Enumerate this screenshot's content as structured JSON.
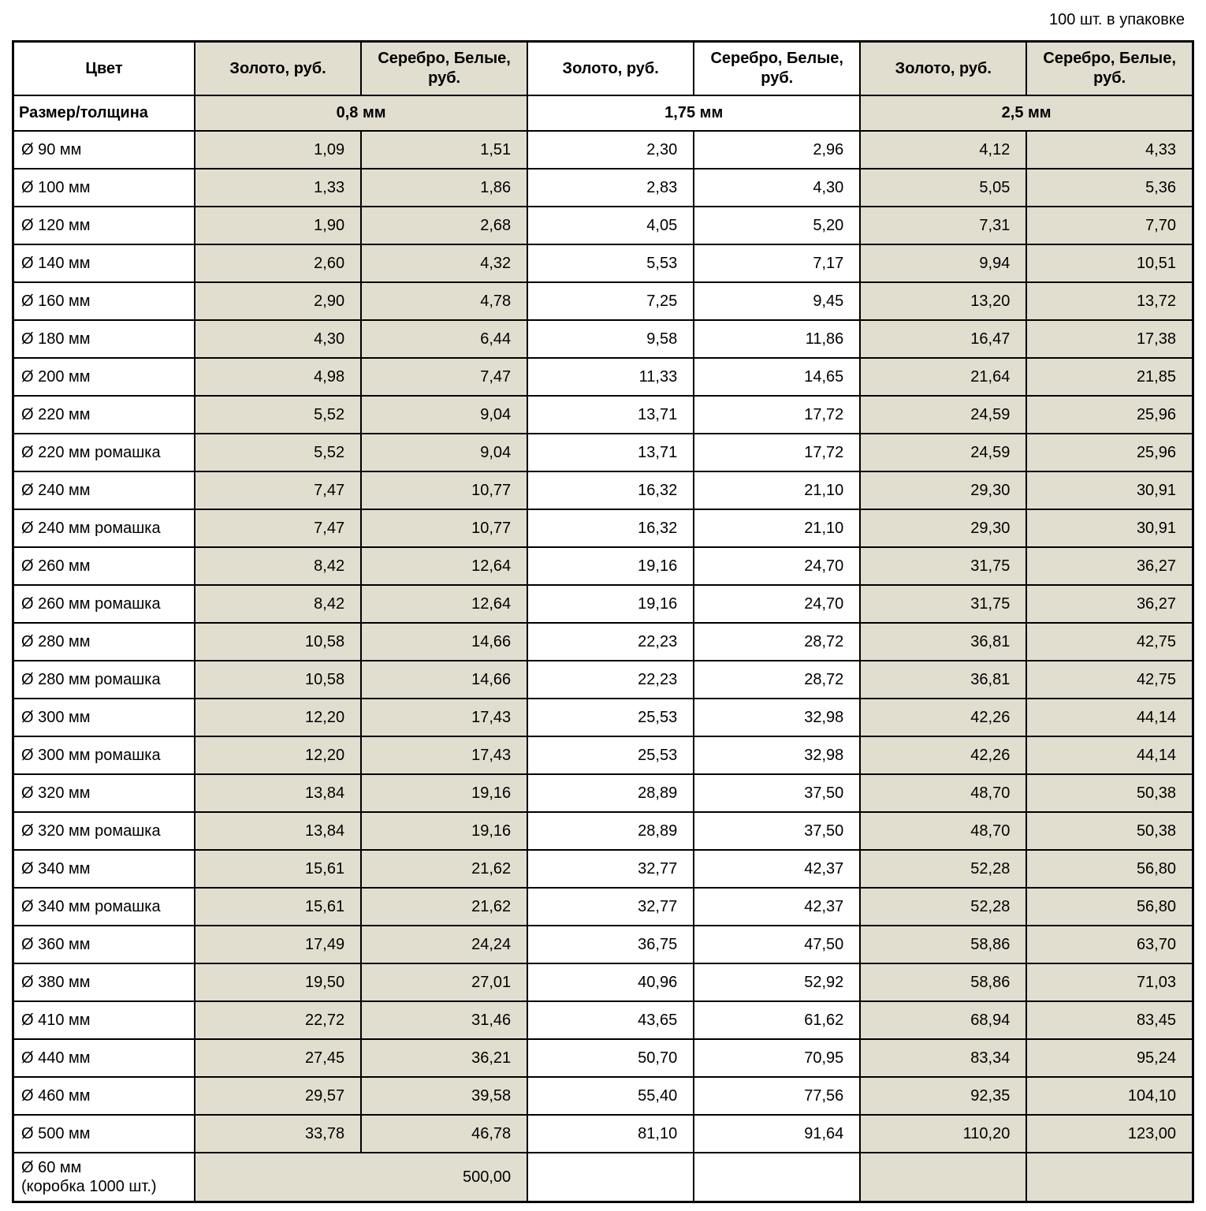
{
  "note": "100 шт. в упаковке",
  "table": {
    "columns": {
      "color": "Цвет",
      "gold": "Золото, руб.",
      "silver": "Серебро, Белые, руб.",
      "size_thickness": "Размер/толщина",
      "thicknesses": [
        "0,8 мм",
        "1,75 мм",
        "2,5 мм"
      ]
    },
    "rows": [
      {
        "size": "Ø 90 мм",
        "values": [
          "1,09",
          "1,51",
          "2,30",
          "2,96",
          "4,12",
          "4,33"
        ]
      },
      {
        "size": "Ø 100 мм",
        "values": [
          "1,33",
          "1,86",
          "2,83",
          "4,30",
          "5,05",
          "5,36"
        ]
      },
      {
        "size": "Ø 120 мм",
        "values": [
          "1,90",
          "2,68",
          "4,05",
          "5,20",
          "7,31",
          "7,70"
        ]
      },
      {
        "size": "Ø 140 мм",
        "values": [
          "2,60",
          "4,32",
          "5,53",
          "7,17",
          "9,94",
          "10,51"
        ]
      },
      {
        "size": "Ø 160 мм",
        "values": [
          "2,90",
          "4,78",
          "7,25",
          "9,45",
          "13,20",
          "13,72"
        ]
      },
      {
        "size": "Ø 180 мм",
        "values": [
          "4,30",
          "6,44",
          "9,58",
          "11,86",
          "16,47",
          "17,38"
        ]
      },
      {
        "size": "Ø 200 мм",
        "values": [
          "4,98",
          "7,47",
          "11,33",
          "14,65",
          "21,64",
          "21,85"
        ]
      },
      {
        "size": "Ø 220 мм",
        "values": [
          "5,52",
          "9,04",
          "13,71",
          "17,72",
          "24,59",
          "25,96"
        ]
      },
      {
        "size": "Ø 220 мм ромашка",
        "values": [
          "5,52",
          "9,04",
          "13,71",
          "17,72",
          "24,59",
          "25,96"
        ]
      },
      {
        "size": "Ø 240 мм",
        "values": [
          "7,47",
          "10,77",
          "16,32",
          "21,10",
          "29,30",
          "30,91"
        ]
      },
      {
        "size": "Ø 240 мм ромашка",
        "values": [
          "7,47",
          "10,77",
          "16,32",
          "21,10",
          "29,30",
          "30,91"
        ]
      },
      {
        "size": "Ø 260 мм",
        "values": [
          "8,42",
          "12,64",
          "19,16",
          "24,70",
          "31,75",
          "36,27"
        ]
      },
      {
        "size": "Ø 260 мм ромашка",
        "values": [
          "8,42",
          "12,64",
          "19,16",
          "24,70",
          "31,75",
          "36,27"
        ]
      },
      {
        "size": "Ø 280 мм",
        "values": [
          "10,58",
          "14,66",
          "22,23",
          "28,72",
          "36,81",
          "42,75"
        ]
      },
      {
        "size": "Ø 280 мм ромашка",
        "values": [
          "10,58",
          "14,66",
          "22,23",
          "28,72",
          "36,81",
          "42,75"
        ]
      },
      {
        "size": "Ø 300 мм",
        "values": [
          "12,20",
          "17,43",
          "25,53",
          "32,98",
          "42,26",
          "44,14"
        ]
      },
      {
        "size": "Ø 300 мм ромашка",
        "values": [
          "12,20",
          "17,43",
          "25,53",
          "32,98",
          "42,26",
          "44,14"
        ]
      },
      {
        "size": "Ø 320 мм",
        "values": [
          "13,84",
          "19,16",
          "28,89",
          "37,50",
          "48,70",
          "50,38"
        ]
      },
      {
        "size": "Ø 320 мм ромашка",
        "values": [
          "13,84",
          "19,16",
          "28,89",
          "37,50",
          "48,70",
          "50,38"
        ]
      },
      {
        "size": "Ø 340 мм",
        "values": [
          "15,61",
          "21,62",
          "32,77",
          "42,37",
          "52,28",
          "56,80"
        ]
      },
      {
        "size": "Ø 340 мм ромашка",
        "values": [
          "15,61",
          "21,62",
          "32,77",
          "42,37",
          "52,28",
          "56,80"
        ]
      },
      {
        "size": "Ø 360 мм",
        "values": [
          "17,49",
          "24,24",
          "36,75",
          "47,50",
          "58,86",
          "63,70"
        ]
      },
      {
        "size": "Ø 380 мм",
        "values": [
          "19,50",
          "27,01",
          "40,96",
          "52,92",
          "58,86",
          "71,03"
        ]
      },
      {
        "size": "Ø 410 мм",
        "values": [
          "22,72",
          "31,46",
          "43,65",
          "61,62",
          "68,94",
          "83,45"
        ]
      },
      {
        "size": "Ø 440 мм",
        "values": [
          "27,45",
          "36,21",
          "50,70",
          "70,95",
          "83,34",
          "95,24"
        ]
      },
      {
        "size": "Ø 460 мм",
        "values": [
          "29,57",
          "39,58",
          "55,40",
          "77,56",
          "92,35",
          "104,10"
        ]
      },
      {
        "size": "Ø 500 мм",
        "values": [
          "33,78",
          "46,78",
          "81,10",
          "91,64",
          "110,20",
          "123,00"
        ]
      }
    ],
    "last_row": {
      "size": "Ø 60 мм\n(коробка 1000 шт.)",
      "value": "500,00"
    },
    "colors": {
      "beige": "#e1ded0",
      "white": "#ffffff",
      "border": "#000000"
    }
  }
}
